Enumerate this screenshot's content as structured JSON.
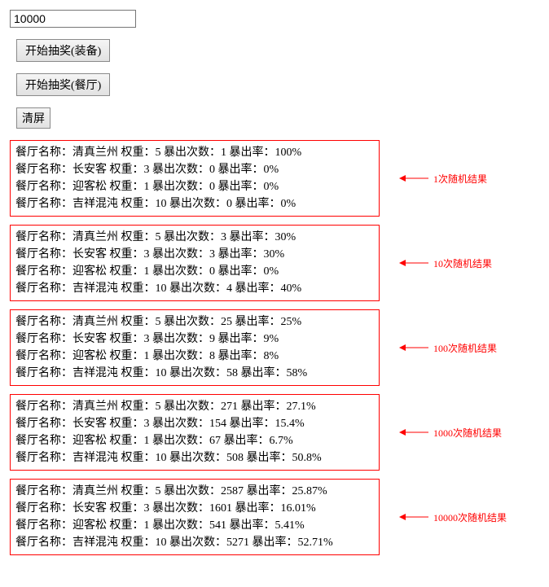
{
  "input": {
    "value": "10000"
  },
  "buttons": {
    "draw_equipment": "开始抽奖(装备)",
    "draw_restaurant": "开始抽奖(餐厅)",
    "clear": "清屏"
  },
  "field_labels": {
    "name": "餐厅名称：",
    "weight": " 权重：",
    "count": " 暴出次数：",
    "rate": " 暴出率："
  },
  "colors": {
    "box_border": "#ff0000",
    "annotation_text": "#ff0000",
    "text": "#000000",
    "background": "#ffffff"
  },
  "result_groups": [
    {
      "annotation": "1次随机结果",
      "rows": [
        {
          "name": "清真兰州",
          "weight": "5",
          "count": "1",
          "rate": "100%"
        },
        {
          "name": "长安客",
          "weight": "3",
          "count": "0",
          "rate": "0%"
        },
        {
          "name": "迎客松",
          "weight": "1",
          "count": "0",
          "rate": "0%"
        },
        {
          "name": "吉祥混沌",
          "weight": "10",
          "count": "0",
          "rate": "0%"
        }
      ]
    },
    {
      "annotation": "10次随机结果",
      "rows": [
        {
          "name": "清真兰州",
          "weight": "5",
          "count": "3",
          "rate": "30%"
        },
        {
          "name": "长安客",
          "weight": "3",
          "count": "3",
          "rate": "30%"
        },
        {
          "name": "迎客松",
          "weight": "1",
          "count": "0",
          "rate": "0%"
        },
        {
          "name": "吉祥混沌",
          "weight": "10",
          "count": "4",
          "rate": "40%"
        }
      ]
    },
    {
      "annotation": "100次随机结果",
      "rows": [
        {
          "name": "清真兰州",
          "weight": "5",
          "count": "25",
          "rate": "25%"
        },
        {
          "name": "长安客",
          "weight": "3",
          "count": "9",
          "rate": "9%"
        },
        {
          "name": "迎客松",
          "weight": "1",
          "count": "8",
          "rate": "8%"
        },
        {
          "name": "吉祥混沌",
          "weight": "10",
          "count": "58",
          "rate": "58%"
        }
      ]
    },
    {
      "annotation": "1000次随机结果",
      "rows": [
        {
          "name": "清真兰州",
          "weight": "5",
          "count": "271",
          "rate": "27.1%"
        },
        {
          "name": "长安客",
          "weight": "3",
          "count": "154",
          "rate": "15.4%"
        },
        {
          "name": "迎客松",
          "weight": "1",
          "count": "67",
          "rate": "6.7%"
        },
        {
          "name": "吉祥混沌",
          "weight": "10",
          "count": "508",
          "rate": "50.8%"
        }
      ]
    },
    {
      "annotation": "10000次随机结果",
      "rows": [
        {
          "name": "清真兰州",
          "weight": "5",
          "count": "2587",
          "rate": "25.87%"
        },
        {
          "name": "长安客",
          "weight": "3",
          "count": "1601",
          "rate": "16.01%"
        },
        {
          "name": "迎客松",
          "weight": "1",
          "count": "541",
          "rate": "5.41%"
        },
        {
          "name": "吉祥混沌",
          "weight": "10",
          "count": "5271",
          "rate": "52.71%"
        }
      ]
    }
  ]
}
